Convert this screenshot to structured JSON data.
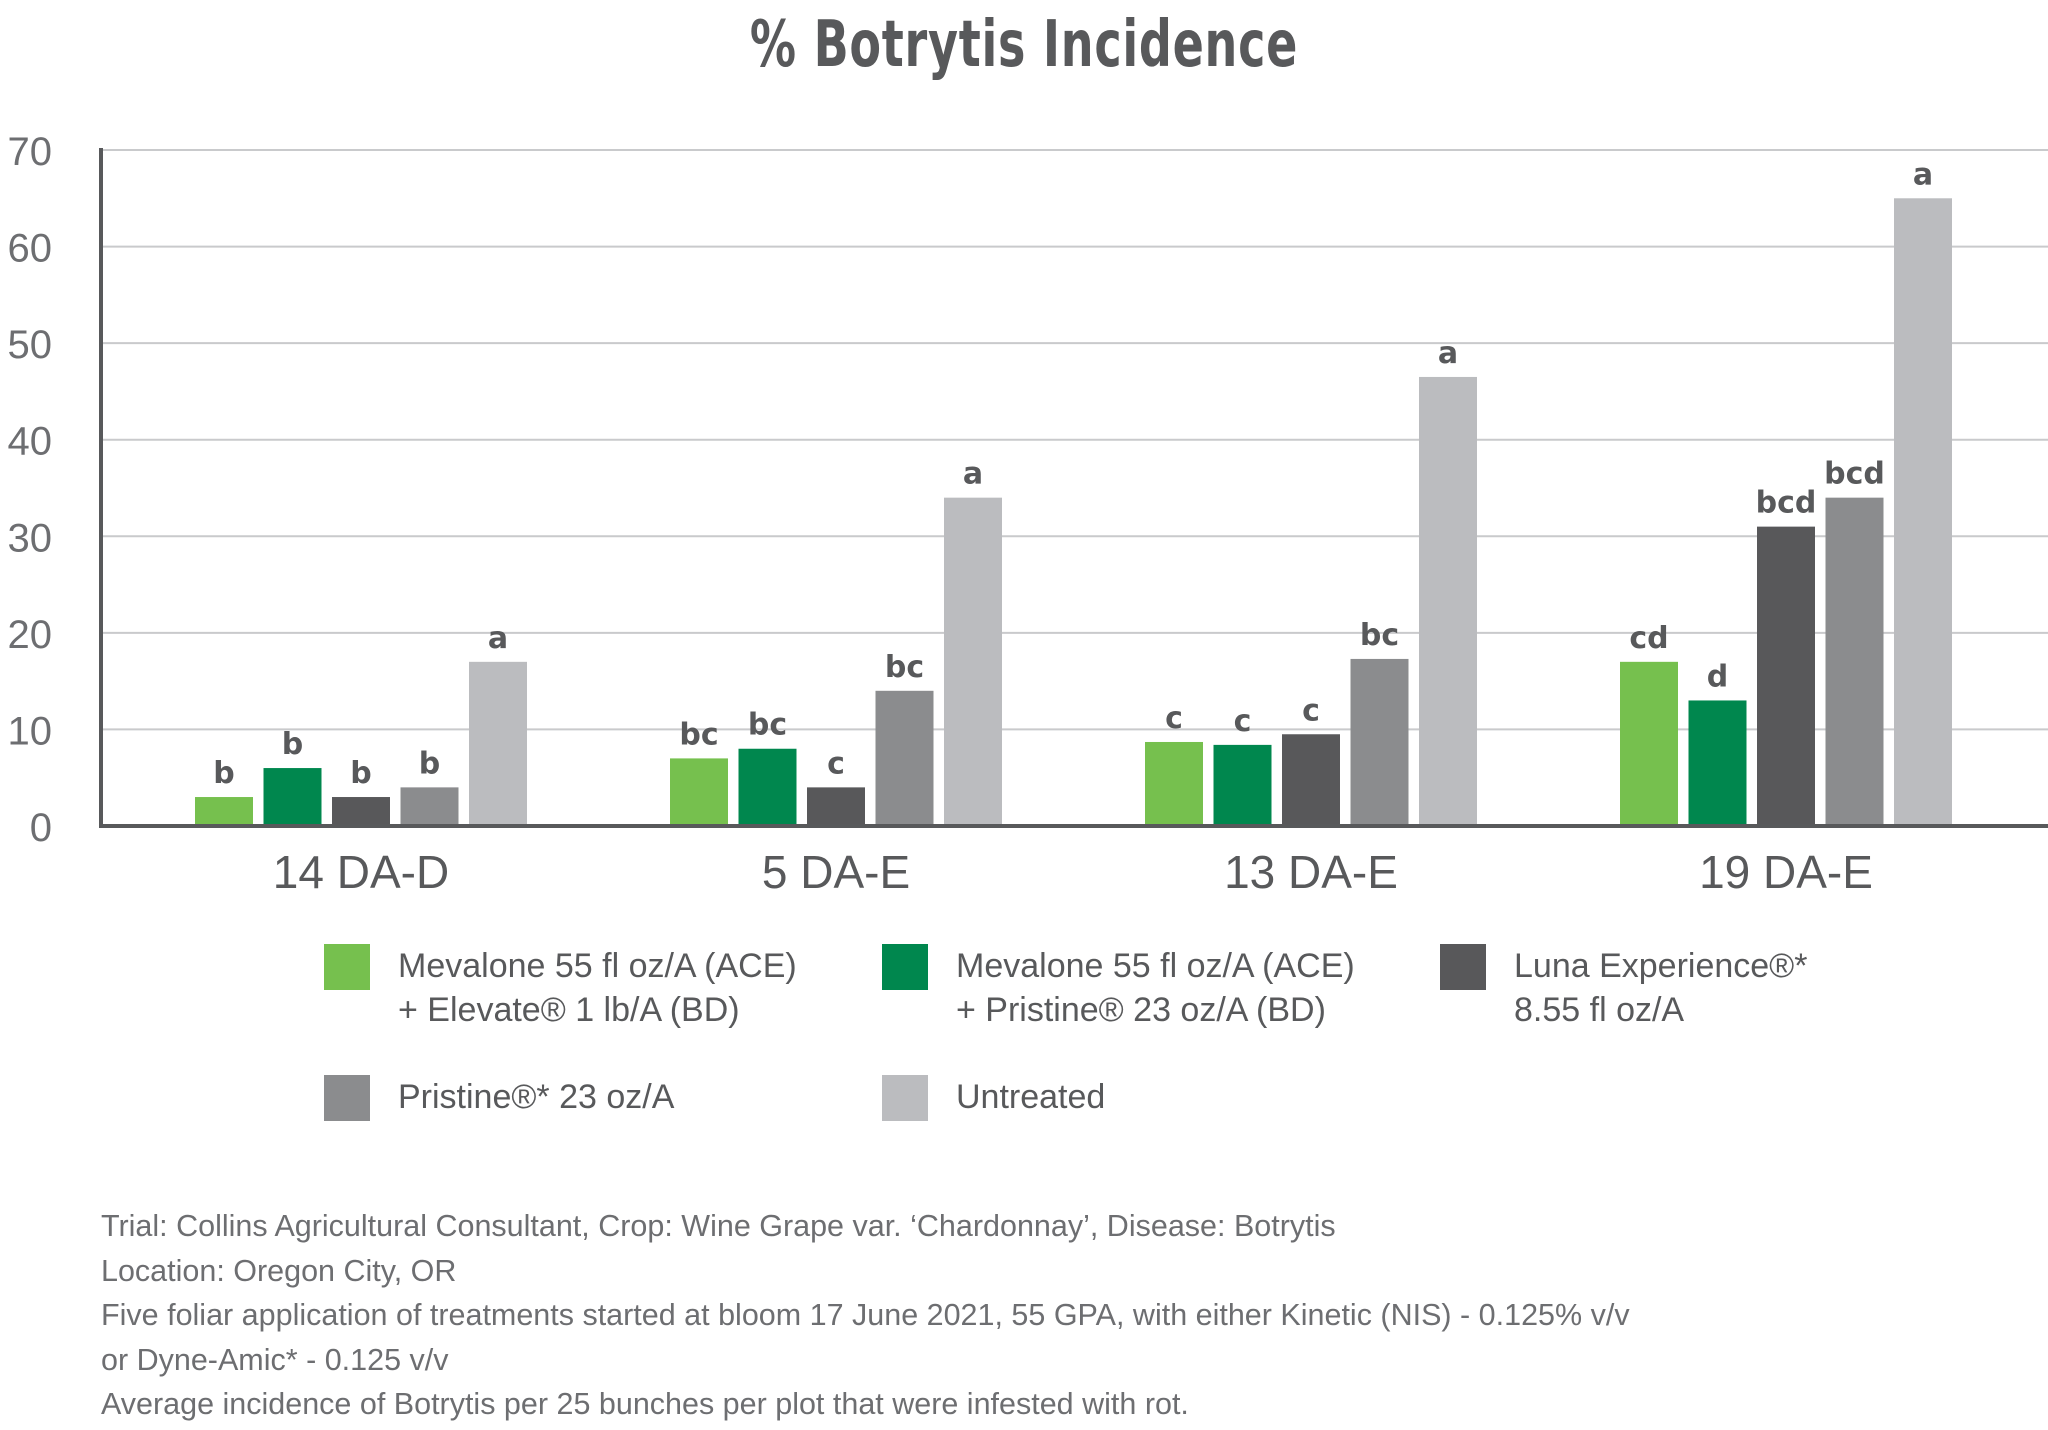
{
  "chart_data": {
    "type": "bar",
    "title": "% Botrytis Incidence",
    "xlabel": "",
    "ylabel": "",
    "ylim": [
      0,
      70
    ],
    "yticks": [
      0,
      10,
      20,
      30,
      40,
      50,
      60,
      70
    ],
    "grid": true,
    "categories": [
      "14 DA-D",
      "5 DA-E",
      "13 DA-E",
      "19 DA-E"
    ],
    "series": [
      {
        "name": "Mevalone 55 fl oz/A (ACE) + Elevate® 1 lb/A (BD)",
        "color": "#76c04e",
        "values": [
          3,
          7,
          8.7,
          17
        ],
        "letters": [
          "b",
          "bc",
          "c",
          "cd"
        ]
      },
      {
        "name": "Mevalone 55 fl oz/A (ACE) + Pristine® 23 oz/A (BD)",
        "color": "#00874e",
        "values": [
          6,
          8,
          8.4,
          13
        ],
        "letters": [
          "b",
          "bc",
          "c",
          "d"
        ]
      },
      {
        "name": "Luna Experience®* 8.55 fl oz/A",
        "color": "#58585a",
        "values": [
          3,
          4,
          9.5,
          31
        ],
        "letters": [
          "b",
          "c",
          "c",
          "bcd"
        ]
      },
      {
        "name": "Pristine®* 23 oz/A",
        "color": "#8b8c8e",
        "values": [
          4,
          14,
          17.3,
          34
        ],
        "letters": [
          "b",
          "bc",
          "bc",
          "bcd"
        ]
      },
      {
        "name": "Untreated",
        "color": "#bbbcbf",
        "values": [
          17,
          34,
          46.5,
          65
        ],
        "letters": [
          "a",
          "a",
          "a",
          "a"
        ]
      }
    ]
  },
  "legend": {
    "items": [
      {
        "lines": [
          "Mevalone 55 fl oz/A (ACE)",
          "+ Elevate® 1 lb/A (BD)"
        ],
        "color": "#76c04e"
      },
      {
        "lines": [
          "Mevalone 55 fl oz/A (ACE)",
          "+ Pristine® 23 oz/A (BD)"
        ],
        "color": "#00874e"
      },
      {
        "lines": [
          "Luna Experience®*",
          "8.55 fl oz/A"
        ],
        "color": "#58585a"
      },
      {
        "lines": [
          "Pristine®* 23 oz/A"
        ],
        "color": "#8b8c8e"
      },
      {
        "lines": [
          "Untreated"
        ],
        "color": "#bbbcbf"
      }
    ]
  },
  "notes": [
    "Trial: Collins Agricultural Consultant, Crop: Wine Grape var. ‘Chardonnay’, Disease: Botrytis",
    "Location: Oregon City, OR",
    "Five foliar application of treatments started at bloom 17 June 2021, 55 GPA, with either Kinetic (NIS) - 0.125% v/v",
    "or Dyne-Amic* - 0.125 v/v",
    "Average incidence of Botrytis per 25 bunches per plot that were infested with rot."
  ]
}
